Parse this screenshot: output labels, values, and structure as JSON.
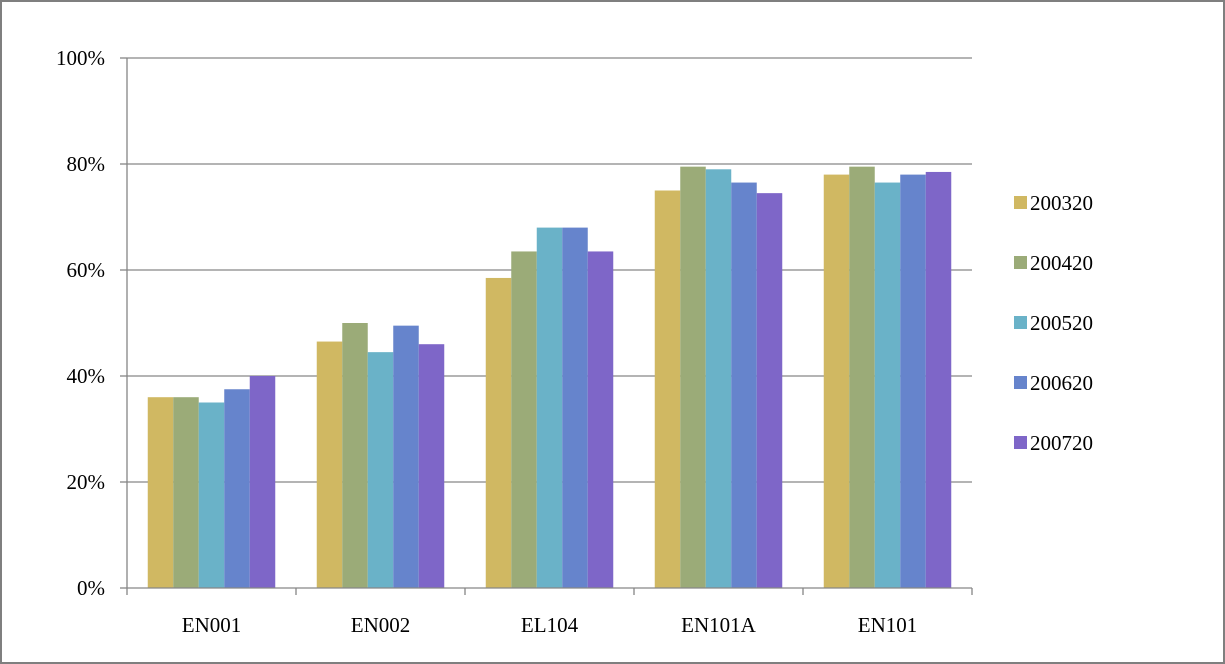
{
  "chart_data": {
    "type": "bar",
    "title": "",
    "xlabel": "",
    "ylabel": "",
    "categories": [
      "EN001",
      "EN002",
      "EL104",
      "EN101A",
      "EN101"
    ],
    "y_ticks": [
      "0%",
      "20%",
      "40%",
      "60%",
      "80%",
      "100%"
    ],
    "ylim": [
      0,
      100
    ],
    "grid": true,
    "legend_position": "right",
    "series": [
      {
        "name": "200320",
        "color": "#d0b862",
        "values": [
          36,
          46.5,
          58.5,
          75,
          78
        ]
      },
      {
        "name": "200420",
        "color": "#9bab78",
        "values": [
          36,
          50,
          63.5,
          79.5,
          79.5
        ]
      },
      {
        "name": "200520",
        "color": "#6ab2c8",
        "values": [
          35,
          44.5,
          68,
          79,
          76.5
        ]
      },
      {
        "name": "200620",
        "color": "#6684cc",
        "values": [
          37.5,
          49.5,
          68,
          76.5,
          78
        ]
      },
      {
        "name": "200720",
        "color": "#7e66c8",
        "values": [
          40,
          46,
          63.5,
          74.5,
          78.5
        ]
      }
    ]
  }
}
